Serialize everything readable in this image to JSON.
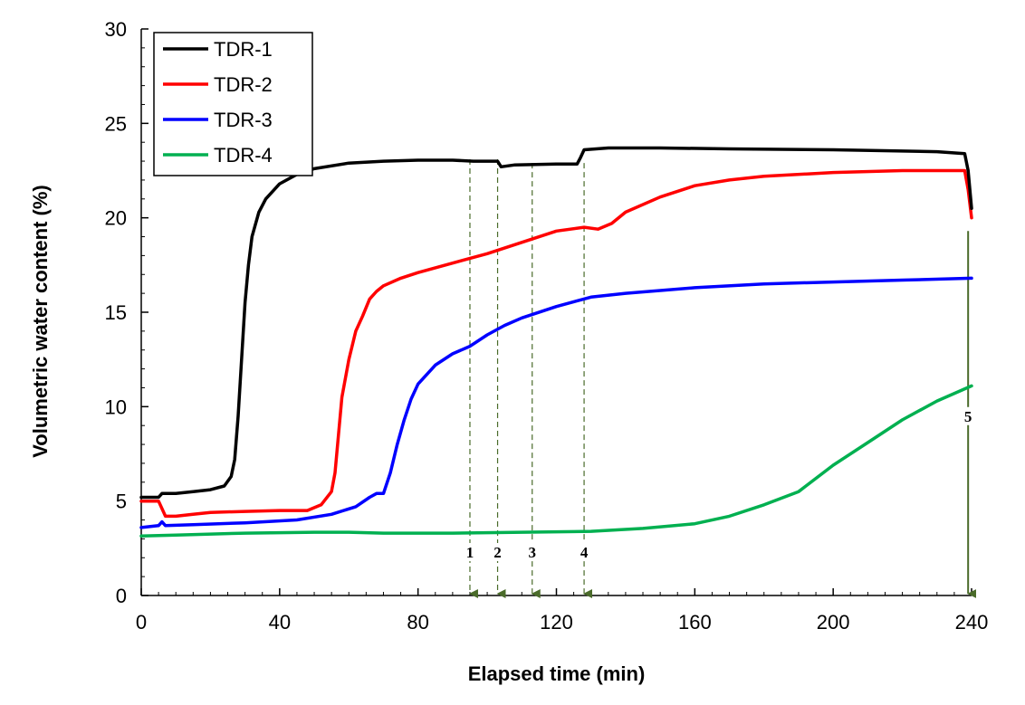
{
  "chart_data": {
    "type": "line",
    "title": "",
    "xlabel": "Elapsed time (min)",
    "ylabel": "Volumetric water content (%)",
    "xlim": [
      0,
      240
    ],
    "ylim": [
      0,
      30
    ],
    "xticks": [
      0,
      40,
      80,
      120,
      160,
      200,
      240
    ],
    "xtick_labels": [
      "0",
      "40",
      "80",
      "120",
      "160",
      "200",
      "240"
    ],
    "yticks": [
      0,
      5,
      10,
      15,
      20,
      25,
      30
    ],
    "ytick_labels": [
      "0",
      "5",
      "10",
      "15",
      "20",
      "25",
      "30"
    ],
    "x_minor_step": 5,
    "grid": false,
    "legend_position": "top-left",
    "series": [
      {
        "name": "TDR-1",
        "color": "#000000",
        "points": [
          [
            0,
            5.2
          ],
          [
            5,
            5.2
          ],
          [
            6,
            5.4
          ],
          [
            10,
            5.4
          ],
          [
            15,
            5.5
          ],
          [
            20,
            5.6
          ],
          [
            24,
            5.8
          ],
          [
            26,
            6.3
          ],
          [
            27,
            7.2
          ],
          [
            28,
            9.5
          ],
          [
            29,
            12.5
          ],
          [
            30,
            15.5
          ],
          [
            31,
            17.5
          ],
          [
            32,
            19
          ],
          [
            34,
            20.3
          ],
          [
            36,
            21
          ],
          [
            40,
            21.8
          ],
          [
            45,
            22.3
          ],
          [
            50,
            22.6
          ],
          [
            60,
            22.9
          ],
          [
            70,
            23
          ],
          [
            80,
            23.05
          ],
          [
            90,
            23.05
          ],
          [
            96,
            23.0
          ],
          [
            103,
            23.0
          ],
          [
            104,
            22.7
          ],
          [
            108,
            22.8
          ],
          [
            120,
            22.85
          ],
          [
            126,
            22.85
          ],
          [
            127,
            23.2
          ],
          [
            128,
            23.6
          ],
          [
            135,
            23.7
          ],
          [
            150,
            23.7
          ],
          [
            170,
            23.65
          ],
          [
            200,
            23.6
          ],
          [
            230,
            23.5
          ],
          [
            238,
            23.4
          ],
          [
            239,
            22.5
          ],
          [
            240,
            20.5
          ]
        ]
      },
      {
        "name": "TDR-2",
        "color": "#ff0000",
        "points": [
          [
            0,
            5.0
          ],
          [
            5,
            5.0
          ],
          [
            6,
            4.6
          ],
          [
            7,
            4.2
          ],
          [
            10,
            4.2
          ],
          [
            15,
            4.3
          ],
          [
            20,
            4.4
          ],
          [
            30,
            4.45
          ],
          [
            40,
            4.5
          ],
          [
            48,
            4.5
          ],
          [
            52,
            4.8
          ],
          [
            55,
            5.5
          ],
          [
            56,
            6.5
          ],
          [
            57,
            8.5
          ],
          [
            58,
            10.5
          ],
          [
            60,
            12.5
          ],
          [
            62,
            14
          ],
          [
            64,
            14.8
          ],
          [
            66,
            15.7
          ],
          [
            68,
            16.1
          ],
          [
            70,
            16.4
          ],
          [
            75,
            16.8
          ],
          [
            80,
            17.1
          ],
          [
            90,
            17.6
          ],
          [
            100,
            18.1
          ],
          [
            110,
            18.7
          ],
          [
            120,
            19.3
          ],
          [
            128,
            19.5
          ],
          [
            132,
            19.4
          ],
          [
            136,
            19.7
          ],
          [
            140,
            20.3
          ],
          [
            150,
            21.1
          ],
          [
            160,
            21.7
          ],
          [
            170,
            22.0
          ],
          [
            180,
            22.2
          ],
          [
            200,
            22.4
          ],
          [
            220,
            22.5
          ],
          [
            238,
            22.5
          ],
          [
            239,
            21.5
          ],
          [
            240,
            20
          ]
        ]
      },
      {
        "name": "TDR-3",
        "color": "#0000ff",
        "points": [
          [
            0,
            3.6
          ],
          [
            5,
            3.7
          ],
          [
            6,
            3.9
          ],
          [
            7,
            3.7
          ],
          [
            15,
            3.75
          ],
          [
            30,
            3.85
          ],
          [
            45,
            4.0
          ],
          [
            55,
            4.3
          ],
          [
            62,
            4.7
          ],
          [
            66,
            5.2
          ],
          [
            68,
            5.4
          ],
          [
            70,
            5.4
          ],
          [
            72,
            6.5
          ],
          [
            74,
            8.0
          ],
          [
            76,
            9.3
          ],
          [
            78,
            10.4
          ],
          [
            80,
            11.2
          ],
          [
            85,
            12.2
          ],
          [
            90,
            12.8
          ],
          [
            95,
            13.2
          ],
          [
            100,
            13.8
          ],
          [
            105,
            14.3
          ],
          [
            110,
            14.7
          ],
          [
            120,
            15.3
          ],
          [
            130,
            15.8
          ],
          [
            140,
            16.0
          ],
          [
            160,
            16.3
          ],
          [
            180,
            16.5
          ],
          [
            200,
            16.6
          ],
          [
            220,
            16.7
          ],
          [
            240,
            16.8
          ]
        ]
      },
      {
        "name": "TDR-4",
        "color": "#00b050",
        "points": [
          [
            0,
            3.15
          ],
          [
            10,
            3.2
          ],
          [
            30,
            3.3
          ],
          [
            50,
            3.35
          ],
          [
            60,
            3.35
          ],
          [
            70,
            3.3
          ],
          [
            90,
            3.3
          ],
          [
            110,
            3.35
          ],
          [
            130,
            3.4
          ],
          [
            145,
            3.55
          ],
          [
            160,
            3.8
          ],
          [
            170,
            4.2
          ],
          [
            180,
            4.8
          ],
          [
            190,
            5.5
          ],
          [
            200,
            6.9
          ],
          [
            210,
            8.1
          ],
          [
            220,
            9.3
          ],
          [
            230,
            10.3
          ],
          [
            240,
            11.1
          ]
        ]
      }
    ],
    "events": [
      {
        "label": "1",
        "x": 95
      },
      {
        "label": "2",
        "x": 103
      },
      {
        "label": "3",
        "x": 113
      },
      {
        "label": "4",
        "x": 128
      },
      {
        "label": "5",
        "x": 239
      }
    ],
    "event_line_color": "#4a6b2a"
  }
}
